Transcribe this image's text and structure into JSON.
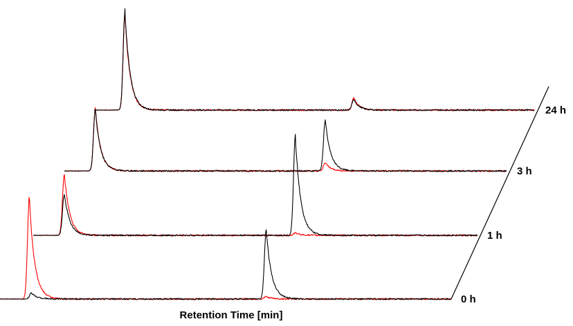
{
  "chart_data": {
    "type": "line",
    "subtype": "stacked-chromatogram-waterfall",
    "title": "",
    "xlabel": "Retention Time [min]",
    "ylabel": "",
    "grid": false,
    "legend": "none",
    "colors": {
      "trace_a": "#000000",
      "trace_b": "#ff0000"
    },
    "traces": [
      {
        "label": "0 h",
        "series": [
          {
            "color": "#000000",
            "peaks": [
              {
                "x": 0.07,
                "height": 0.05
              },
              {
                "x": 0.59,
                "height": 0.58
              }
            ]
          },
          {
            "color": "#ff0000",
            "peaks": [
              {
                "x": 0.065,
                "height": 0.85
              },
              {
                "x": 0.59,
                "height": 0.02
              }
            ]
          }
        ]
      },
      {
        "label": "1 h",
        "series": [
          {
            "color": "#000000",
            "peaks": [
              {
                "x": 0.07,
                "height": 0.35
              },
              {
                "x": 0.59,
                "height": 0.83
              }
            ]
          },
          {
            "color": "#ff0000",
            "peaks": [
              {
                "x": 0.07,
                "height": 0.52
              },
              {
                "x": 0.59,
                "height": 0.02
              }
            ]
          }
        ]
      },
      {
        "label": "3 h",
        "series": [
          {
            "color": "#000000",
            "peaks": [
              {
                "x": 0.07,
                "height": 0.52
              },
              {
                "x": 0.59,
                "height": 0.43
              }
            ]
          },
          {
            "color": "#ff0000",
            "peaks": [
              {
                "x": 0.07,
                "height": 0.53
              },
              {
                "x": 0.59,
                "height": 0.07
              }
            ]
          }
        ]
      },
      {
        "label": "24 h",
        "series": [
          {
            "color": "#000000",
            "peaks": [
              {
                "x": 0.07,
                "height": 0.83
              },
              {
                "x": 0.59,
                "height": 0.09
              }
            ]
          },
          {
            "color": "#ff0000",
            "peaks": [
              {
                "x": 0.07,
                "height": 0.8
              },
              {
                "x": 0.59,
                "height": 0.1
              }
            ]
          }
        ]
      }
    ]
  }
}
